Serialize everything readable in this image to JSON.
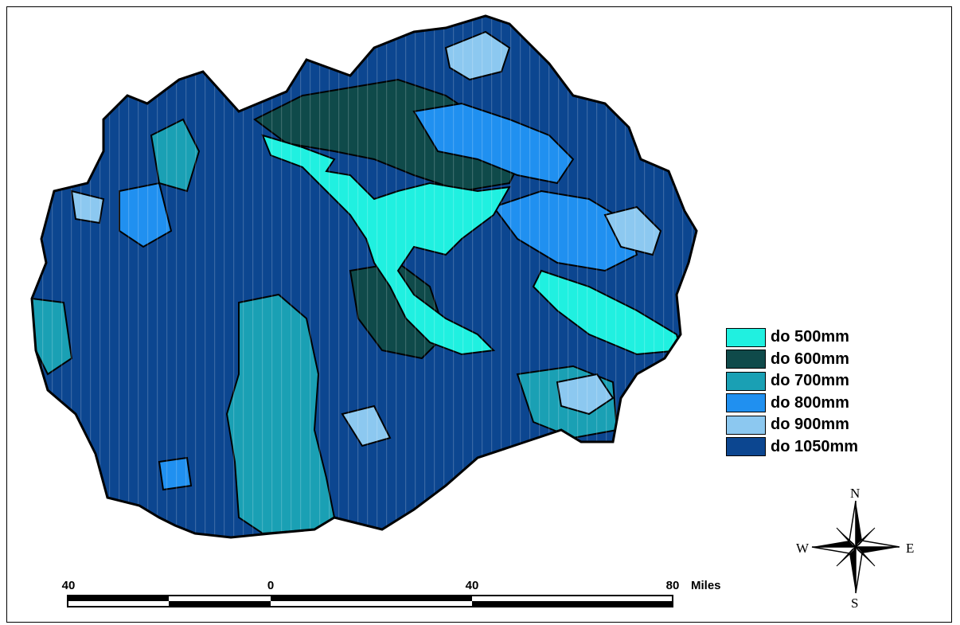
{
  "legend": {
    "items": [
      {
        "label": "do 500mm",
        "color": "#20f0e0"
      },
      {
        "label": "do 600mm",
        "color": "#0f4a4a"
      },
      {
        "label": "do 700mm",
        "color": "#1aa0b4"
      },
      {
        "label": "do 800mm",
        "color": "#2090f0"
      },
      {
        "label": "do 900mm",
        "color": "#8cc8f0"
      },
      {
        "label": "do 1050mm",
        "color": "#0c4690"
      }
    ]
  },
  "scale_bar": {
    "ticks": [
      "40",
      "0",
      "40",
      "80"
    ],
    "units": "Miles"
  },
  "compass": {
    "n": "N",
    "s": "S",
    "e": "E",
    "w": "W"
  }
}
